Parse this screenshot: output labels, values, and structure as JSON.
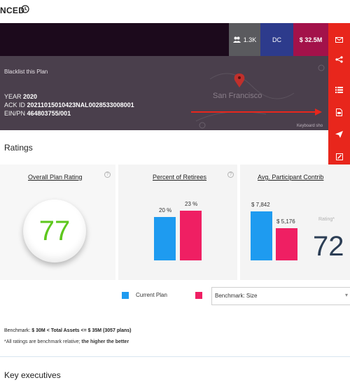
{
  "header": {
    "title": "NCED"
  },
  "hero": {
    "stats": [
      {
        "icon": "users-icon",
        "value": "1.3K"
      },
      {
        "value": "DC"
      },
      {
        "value": "$ 32.5M"
      }
    ],
    "blacklist_label": "Blacklist this Plan",
    "year_label": "YEAR",
    "year_value": "2020",
    "ack_label": "ACK ID",
    "ack_value": "20211015010423NAL0028533008001",
    "ein_label": "EIN/PN",
    "ein_value": "464803755/001",
    "map_city": "San Francisco",
    "map_keyboard": "Keyboard sho",
    "accent": "#e8261c"
  },
  "sidebar": {
    "items": [
      {
        "icon": "mail-icon"
      },
      {
        "icon": "share-icon"
      },
      {
        "icon": "list-icon"
      },
      {
        "icon": "pdf-icon"
      },
      {
        "icon": "send-icon"
      },
      {
        "icon": "edit-icon"
      },
      {
        "icon": "trash-icon"
      }
    ]
  },
  "ratings": {
    "section_title": "Ratings",
    "overall": {
      "title": "Overall Plan Rating",
      "value": "77",
      "color": "#5ec71e"
    },
    "retirees": {
      "title": "Percent of Retirees",
      "current_label": "20 %",
      "benchmark_label": "23 %",
      "current": 20,
      "benchmark": 23
    },
    "contrib": {
      "title": "Avg. Participant Contrib",
      "current_label": "$ 7,842",
      "benchmark_label": "$ 5,176",
      "current": 7842,
      "benchmark": 5176,
      "rating_label": "Rating*",
      "rating_value": "72"
    },
    "colors": {
      "current": "#1e9bf0",
      "benchmark": "#ef1f63"
    }
  },
  "legend": {
    "current_label": "Current Plan",
    "benchmark_select": "Benchmark: Size"
  },
  "benchmark_note": {
    "prefix": "Benchmark: ",
    "bold": "$ 30M < Total Assets <= $ 35M (3057 plans)",
    "footnote_prefix": "*All ratings are benchmark relative; ",
    "footnote_bold": "the higher the better"
  },
  "executives": {
    "section_title": "Key executives"
  }
}
